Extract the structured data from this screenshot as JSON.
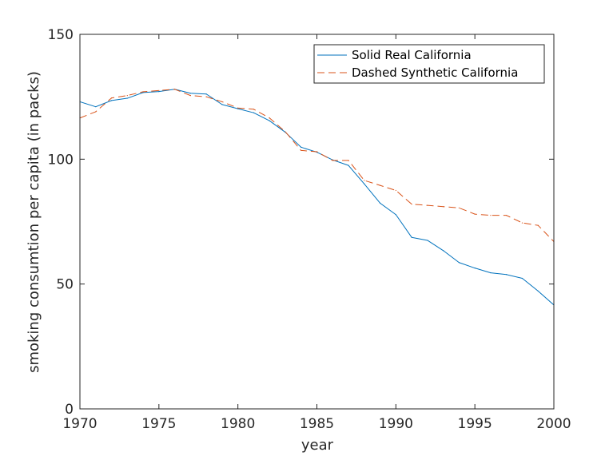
{
  "chart_data": {
    "type": "line",
    "xlabel": "year",
    "ylabel": "smoking consumtion per capita (in packs)",
    "xlim": [
      1970,
      2000
    ],
    "ylim": [
      0,
      150
    ],
    "xticks": [
      1970,
      1975,
      1980,
      1985,
      1990,
      1995,
      2000
    ],
    "yticks": [
      0,
      50,
      100,
      150
    ],
    "grid": false,
    "legend_position": "top-right",
    "x": [
      1970,
      1971,
      1972,
      1973,
      1974,
      1975,
      1976,
      1977,
      1978,
      1979,
      1980,
      1981,
      1982,
      1983,
      1984,
      1985,
      1986,
      1987,
      1988,
      1989,
      1990,
      1991,
      1992,
      1993,
      1994,
      1995,
      1996,
      1997,
      1998,
      1999,
      2000
    ],
    "series": [
      {
        "name": "Solid Real California",
        "color": "#0072BD",
        "style": "solid",
        "values": [
          123,
          121,
          123.5,
          124.4,
          126.7,
          127.1,
          128,
          126.4,
          126.1,
          121.9,
          120.2,
          118.6,
          115.4,
          110.8,
          104.8,
          102.8,
          99.7,
          97.5,
          90.1,
          82.4,
          77.8,
          68.7,
          67.5,
          63.4,
          58.6,
          56.4,
          54.5,
          53.8,
          52.3,
          47.2,
          41.6
        ]
      },
      {
        "name": "Dashed Synthetic California",
        "color": "#D95319",
        "style": "dashed",
        "values": [
          116.5,
          119,
          124.5,
          125.5,
          127,
          127.5,
          128,
          125.5,
          125,
          123,
          120.5,
          120,
          116.5,
          111,
          103.5,
          103,
          99.5,
          99.5,
          91.5,
          89.5,
          87.5,
          82,
          81.5,
          81,
          80.5,
          78,
          77.5,
          77.5,
          74.5,
          73.5,
          67
        ]
      }
    ]
  }
}
